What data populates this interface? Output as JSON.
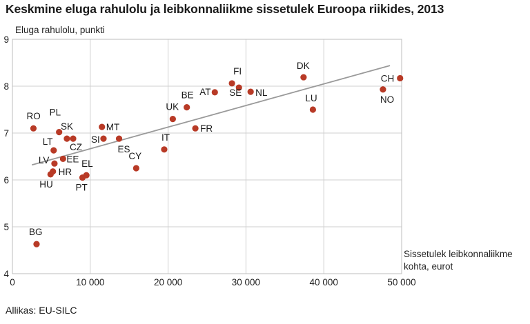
{
  "chart_data": {
    "type": "scatter",
    "title": "Keskmine eluga rahulolu ja leibkonnaliikme sissetulek Euroopa riikides, 2013",
    "ylabel": "Eluga rahulolu, punkti",
    "xlabel_lines": [
      "Sissetulek leibkonnaliikme",
      "kohta, eurot"
    ],
    "xlim": [
      0,
      50000
    ],
    "ylim": [
      4,
      9
    ],
    "x_ticks": [
      0,
      10000,
      20000,
      30000,
      40000,
      50000
    ],
    "x_tick_labels": [
      "0",
      "10 000",
      "20 000",
      "30 000",
      "40 000",
      "50 000"
    ],
    "y_ticks": [
      4,
      5,
      6,
      7,
      8,
      9
    ],
    "y_tick_labels": [
      "4",
      "5",
      "6",
      "7",
      "8",
      "9"
    ],
    "grid": true,
    "legend": "none",
    "point_color": "#b83a26",
    "trend_color": "#9a9a9a",
    "trendline": {
      "x": [
        2500,
        48500
      ],
      "y": [
        6.32,
        8.44
      ]
    },
    "points": [
      {
        "label": "RO",
        "x": 2700,
        "y": 7.1
      },
      {
        "label": "PL",
        "x": 6000,
        "y": 7.02
      },
      {
        "label": "SK",
        "x": 7000,
        "y": 6.88
      },
      {
        "label": "CZ",
        "x": 7800,
        "y": 6.88
      },
      {
        "label": "LT",
        "x": 5300,
        "y": 6.63
      },
      {
        "label": "LV",
        "x": 5400,
        "y": 6.35
      },
      {
        "label": "EE",
        "x": 6500,
        "y": 6.45
      },
      {
        "label": "HR",
        "x": 5200,
        "y": 6.18
      },
      {
        "label": "HU",
        "x": 4900,
        "y": 6.12
      },
      {
        "label": "BG",
        "x": 3100,
        "y": 4.63
      },
      {
        "label": "EL",
        "x": 9500,
        "y": 6.1
      },
      {
        "label": "PT",
        "x": 9000,
        "y": 6.05
      },
      {
        "label": "MT",
        "x": 11500,
        "y": 7.13
      },
      {
        "label": "SI",
        "x": 11700,
        "y": 6.88
      },
      {
        "label": "ES",
        "x": 13700,
        "y": 6.88
      },
      {
        "label": "CY",
        "x": 15900,
        "y": 6.25
      },
      {
        "label": "IT",
        "x": 19500,
        "y": 6.65
      },
      {
        "label": "UK",
        "x": 20600,
        "y": 7.3
      },
      {
        "label": "BE",
        "x": 22400,
        "y": 7.55
      },
      {
        "label": "FR",
        "x": 23500,
        "y": 7.1
      },
      {
        "label": "AT",
        "x": 26000,
        "y": 7.87
      },
      {
        "label": "FI",
        "x": 28200,
        "y": 8.06
      },
      {
        "label": "SE",
        "x": 29100,
        "y": 7.97
      },
      {
        "label": "NL",
        "x": 30600,
        "y": 7.88
      },
      {
        "label": "DK",
        "x": 37400,
        "y": 8.19
      },
      {
        "label": "LU",
        "x": 38600,
        "y": 7.5
      },
      {
        "label": "NO",
        "x": 47600,
        "y": 7.93
      },
      {
        "label": "CH",
        "x": 49800,
        "y": 8.17
      }
    ]
  },
  "source": "Allikas: EU-SILC"
}
